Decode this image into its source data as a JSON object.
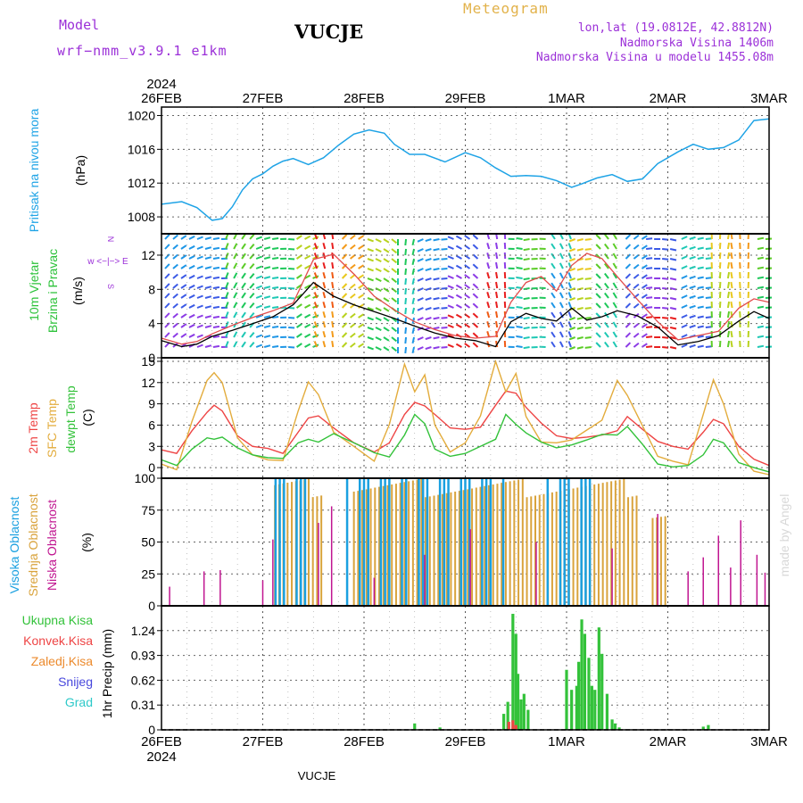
{
  "header": {
    "model_label": "Model",
    "model_version": "wrf−nmm_v3.9.1  e1km",
    "station": "VUCJE",
    "product": "Meteogram",
    "coords": "lon,lat (19.0812E, 42.8812N)",
    "elevation": "Nadmorska Visina 1406m",
    "model_elevation": "Nadmorska Visina u modelu 1455.08m",
    "footer_station": "VUCJE",
    "watermark": "made by Angel"
  },
  "chart_data": [
    {
      "type": "line",
      "panel": "pressure",
      "ylabel": "Pritisak na nivou mora",
      "unit": "(hPa)",
      "ylim": [
        1006,
        1021
      ],
      "yticks": [
        1008,
        1012,
        1016,
        1020
      ],
      "x_day_start": 0,
      "x_days": [
        "26FEB",
        "27FEB",
        "28FEB",
        "29FEB",
        "1MAR",
        "2MAR",
        "3MAR"
      ],
      "x_year": "2024",
      "color": "#1ea3e6",
      "x": [
        0,
        0.2,
        0.35,
        0.5,
        0.6,
        0.7,
        0.8,
        0.9,
        1.0,
        1.1,
        1.2,
        1.3,
        1.45,
        1.6,
        1.75,
        1.9,
        2.05,
        2.2,
        2.3,
        2.45,
        2.6,
        2.8,
        3.0,
        3.15,
        3.3,
        3.45,
        3.6,
        3.75,
        3.9,
        4.05,
        4.15,
        4.3,
        4.45,
        4.6,
        4.75,
        4.9,
        5.1,
        5.25,
        5.4,
        5.55,
        5.7,
        5.85,
        6.0
      ],
      "y": [
        1009.5,
        1009.8,
        1009.1,
        1007.6,
        1007.8,
        1009.2,
        1011.2,
        1012.5,
        1013.1,
        1014.0,
        1014.6,
        1014.9,
        1014.2,
        1015.0,
        1016.5,
        1017.8,
        1018.3,
        1017.9,
        1016.6,
        1015.4,
        1015.4,
        1014.5,
        1015.6,
        1015.0,
        1013.8,
        1012.8,
        1012.9,
        1012.8,
        1012.3,
        1011.5,
        1011.9,
        1012.6,
        1013.0,
        1012.2,
        1012.5,
        1014.3,
        1015.7,
        1016.6,
        1016.0,
        1016.2,
        1017.1,
        1019.4,
        1019.6
      ]
    },
    {
      "type": "line",
      "panel": "wind",
      "ylabel": "10m Vjetar",
      "ylabel2": "Brzina i Pravac",
      "unit": "(m/s)",
      "compass_label": "w <−|−> E",
      "compass_top": "N",
      "compass_bottom": "S",
      "ylim": [
        0,
        14.5
      ],
      "yticks": [
        0,
        4,
        8,
        12
      ],
      "series": [
        {
          "name": "",
          "color": "#e24c4c",
          "x": [
            0,
            0.2,
            0.35,
            0.5,
            0.7,
            0.9,
            1.1,
            1.3,
            1.5,
            1.7,
            1.9,
            2.1,
            2.3,
            2.5,
            2.7,
            2.9,
            3.1,
            3.3,
            3.45,
            3.6,
            3.75,
            3.9,
            4.05,
            4.2,
            4.35,
            4.5,
            4.7,
            4.9,
            5.1,
            5.3,
            5.5,
            5.7,
            5.85,
            6.0
          ],
          "y": [
            2.3,
            1.6,
            1.9,
            2.8,
            3.8,
            4.7,
            5.5,
            6.4,
            11.5,
            12.1,
            9.8,
            7.2,
            5.6,
            4.2,
            3.3,
            2.6,
            2.3,
            2.5,
            6.5,
            8.8,
            9.5,
            7.8,
            10.8,
            12.2,
            11.6,
            9.5,
            6.8,
            4.2,
            2.1,
            2.6,
            3.1,
            5.8,
            6.9,
            6.5
          ]
        },
        {
          "name": "",
          "color": "#000000",
          "x": [
            0,
            0.2,
            0.35,
            0.5,
            0.7,
            0.9,
            1.1,
            1.3,
            1.5,
            1.7,
            1.9,
            2.1,
            2.3,
            2.5,
            2.7,
            2.9,
            3.1,
            3.3,
            3.45,
            3.6,
            3.75,
            3.9,
            4.05,
            4.2,
            4.35,
            4.5,
            4.7,
            4.9,
            5.1,
            5.3,
            5.5,
            5.7,
            5.85,
            6.0
          ],
          "y": [
            2.0,
            1.3,
            1.6,
            2.5,
            3.2,
            4.0,
            4.8,
            6.2,
            8.8,
            7.2,
            6.2,
            5.4,
            4.6,
            3.7,
            2.9,
            2.3,
            2.0,
            1.3,
            4.2,
            5.2,
            4.6,
            4.3,
            5.8,
            4.4,
            4.8,
            5.5,
            4.9,
            3.6,
            1.5,
            1.9,
            2.6,
            4.3,
            5.4,
            4.6
          ]
        }
      ]
    },
    {
      "type": "line",
      "panel": "temperature",
      "unit": "(C)",
      "ylim": [
        -1.5,
        15.5
      ],
      "yticks": [
        0,
        3,
        6,
        9,
        12,
        15
      ],
      "series": [
        {
          "name": "2m Temp",
          "color": "#ee4444",
          "x": [
            0,
            0.15,
            0.3,
            0.45,
            0.52,
            0.6,
            0.75,
            0.9,
            1.05,
            1.2,
            1.35,
            1.45,
            1.55,
            1.7,
            1.9,
            2.1,
            2.25,
            2.4,
            2.5,
            2.6,
            2.7,
            2.85,
            3.0,
            3.15,
            3.3,
            3.4,
            3.5,
            3.6,
            3.75,
            3.9,
            4.05,
            4.2,
            4.35,
            4.5,
            4.6,
            4.75,
            4.9,
            5.05,
            5.2,
            5.35,
            5.45,
            5.55,
            5.7,
            5.85,
            6.0
          ],
          "y": [
            2.5,
            2.0,
            5.2,
            7.8,
            8.8,
            8.0,
            4.5,
            3.0,
            2.7,
            2.0,
            5.0,
            7.0,
            7.3,
            5.6,
            3.5,
            2.2,
            3.5,
            7.5,
            9.2,
            8.7,
            7.5,
            5.6,
            5.4,
            5.7,
            8.8,
            10.8,
            10.5,
            8.5,
            6.3,
            4.5,
            4.1,
            4.3,
            4.6,
            5.2,
            7.2,
            5.4,
            3.7,
            3.0,
            2.6,
            5.0,
            6.8,
            6.2,
            3.0,
            1.2,
            0.3
          ]
        },
        {
          "name": "SFC Temp",
          "color": "#e3ac3c",
          "x": [
            0,
            0.15,
            0.3,
            0.45,
            0.52,
            0.6,
            0.75,
            0.9,
            1.05,
            1.2,
            1.35,
            1.45,
            1.55,
            1.7,
            1.9,
            2.1,
            2.25,
            2.4,
            2.5,
            2.6,
            2.7,
            2.85,
            3.0,
            3.15,
            3.3,
            3.4,
            3.5,
            3.6,
            3.75,
            3.9,
            4.05,
            4.2,
            4.35,
            4.5,
            4.6,
            4.75,
            4.9,
            5.05,
            5.2,
            5.35,
            5.45,
            5.55,
            5.7,
            5.85,
            6.0
          ],
          "y": [
            0.5,
            -0.3,
            6.5,
            12.3,
            13.4,
            12.0,
            4.2,
            1.8,
            1.1,
            1.0,
            8.0,
            12.1,
            10.3,
            5.0,
            3.0,
            0.9,
            6.1,
            14.6,
            10.7,
            13.1,
            6.0,
            2.2,
            3.5,
            7.3,
            15.0,
            10.7,
            13.3,
            7.2,
            3.6,
            3.5,
            3.9,
            5.3,
            6.7,
            12.3,
            10.2,
            5.9,
            1.6,
            0.9,
            0.4,
            7.5,
            12.4,
            9.0,
            1.9,
            -0.5,
            -1.0
          ]
        },
        {
          "name": "dewpt Temp",
          "color": "#33c23a",
          "x": [
            0,
            0.15,
            0.3,
            0.45,
            0.52,
            0.6,
            0.75,
            0.9,
            1.05,
            1.2,
            1.35,
            1.45,
            1.55,
            1.7,
            1.9,
            2.1,
            2.25,
            2.4,
            2.5,
            2.6,
            2.7,
            2.85,
            3.0,
            3.15,
            3.3,
            3.4,
            3.5,
            3.6,
            3.75,
            3.9,
            4.05,
            4.2,
            4.35,
            4.5,
            4.6,
            4.75,
            4.9,
            5.05,
            5.2,
            5.35,
            5.45,
            5.55,
            5.7,
            5.85,
            6.0
          ],
          "y": [
            1.1,
            0.3,
            2.6,
            4.2,
            4.0,
            4.3,
            2.8,
            1.8,
            1.4,
            1.3,
            3.5,
            4.0,
            3.6,
            4.8,
            3.5,
            2.1,
            1.5,
            4.6,
            7.5,
            6.2,
            2.6,
            1.6,
            2.0,
            3.0,
            4.0,
            7.5,
            6.1,
            4.9,
            3.6,
            2.8,
            3.2,
            3.9,
            4.7,
            4.6,
            5.8,
            3.3,
            0.5,
            0.1,
            0.3,
            1.8,
            4.0,
            3.5,
            0.7,
            0.0,
            -0.6
          ]
        }
      ]
    },
    {
      "type": "bar",
      "panel": "cloud",
      "unit": "(%)",
      "ylim": [
        0,
        100
      ],
      "yticks": [
        0,
        25,
        50,
        75,
        100
      ],
      "series": [
        {
          "name": "Visoka Oblacnost",
          "color": "#1aa0e0"
        },
        {
          "name": "Srednja Oblacnost",
          "color": "#d9a33c"
        },
        {
          "name": "Niska Oblacnost",
          "color": "#c01590"
        }
      ],
      "high_segments": [
        [
          1.03,
          1.5,
          100
        ],
        [
          1.82,
          3.4,
          100
        ],
        [
          3.8,
          4.3,
          100
        ],
        [
          4.9,
          4.95,
          100
        ]
      ],
      "mid_segments": [
        [
          1.12,
          1.6,
          100
        ],
        [
          1.9,
          4.7,
          100
        ],
        [
          4.85,
          4.98,
          75
        ]
      ],
      "low_spikes": [
        [
          0.08,
          15
        ],
        [
          0.42,
          27
        ],
        [
          0.58,
          28
        ],
        [
          1.0,
          20
        ],
        [
          1.1,
          52
        ],
        [
          1.55,
          65
        ],
        [
          1.68,
          78
        ],
        [
          2.1,
          22
        ],
        [
          2.6,
          40
        ],
        [
          3.05,
          60
        ],
        [
          3.7,
          50
        ],
        [
          4.45,
          45
        ],
        [
          4.9,
          72
        ],
        [
          5.2,
          27
        ],
        [
          5.35,
          38
        ],
        [
          5.5,
          55
        ],
        [
          5.62,
          30
        ],
        [
          5.72,
          67
        ],
        [
          5.88,
          40
        ],
        [
          5.96,
          26
        ]
      ]
    },
    {
      "type": "bar",
      "panel": "precipitation",
      "ylabel": "1hr Precip",
      "unit": "(mm)",
      "ylim": [
        0,
        1.55
      ],
      "yticks": [
        0,
        0.31,
        0.62,
        0.93,
        1.24
      ],
      "legend": [
        "Ukupna Kisa",
        "Konvek.Kisa",
        "Zaledj.Kisa",
        "Snijeg",
        "Grad"
      ],
      "legend_colors": [
        "#33c23a",
        "#ee4444",
        "#ec8a2c",
        "#4848dd",
        "#2ec9c9"
      ],
      "series": [
        {
          "name": "Ukupna Kisa",
          "color": "#33c23a",
          "x": [
            2.5,
            2.75,
            3.38,
            3.42,
            3.47,
            3.5,
            3.52,
            3.55,
            3.58,
            3.62,
            4.0,
            4.05,
            4.1,
            4.12,
            4.15,
            4.18,
            4.22,
            4.25,
            4.28,
            4.32,
            4.35,
            4.4,
            4.45,
            4.48,
            4.52,
            5.35,
            5.4
          ],
          "y": [
            0.08,
            0.03,
            0.2,
            0.35,
            1.45,
            1.2,
            0.7,
            0.38,
            0.45,
            0.25,
            0.75,
            0.5,
            0.55,
            0.85,
            1.38,
            1.2,
            0.9,
            0.55,
            0.5,
            1.28,
            0.95,
            0.45,
            0.13,
            0.08,
            0.03,
            0.04,
            0.06
          ]
        },
        {
          "name": "Konvek.Kisa",
          "color": "#ee4444",
          "x": [
            3.43,
            3.47,
            3.5
          ],
          "y": [
            0.1,
            0.12,
            0.06
          ]
        }
      ]
    }
  ]
}
